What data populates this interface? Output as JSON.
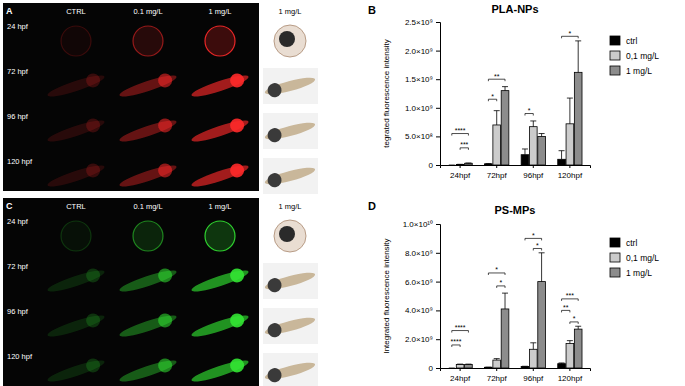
{
  "image_panels": [
    {
      "label": "A",
      "columns": [
        "CTRL",
        "0.1 mg/L",
        "1 mg/L"
      ],
      "rows": [
        "24 hpf",
        "72 hpf",
        "96 hpf",
        "120 hpf"
      ],
      "brightfield_column": "1 mg/L",
      "color": "#ff2a2a"
    },
    {
      "label": "C",
      "columns": [
        "CTRL",
        "0.1 mg/L",
        "1 mg/L"
      ],
      "rows": [
        "24 hpf",
        "72 hpf",
        "96 hpf",
        "120 hpf"
      ],
      "brightfield_column": "1 mg/L",
      "color": "#33e633"
    }
  ],
  "chart_data": [
    {
      "label": "B",
      "type": "bar",
      "title": "PLA-NPs",
      "y_label": "tegrated fluorescence intensity",
      "categories": [
        "24hpf",
        "72hpf",
        "96hpf",
        "120hpf"
      ],
      "series": [
        {
          "name": "ctrl",
          "color": "#000000",
          "values": [
            0,
            20000000,
            180000000,
            100000000
          ],
          "errors": [
            0,
            5000000,
            100000000,
            150000000
          ]
        },
        {
          "name": "0,1 mg/L",
          "color": "#cccccc",
          "values": [
            10000000,
            700000000,
            670000000,
            720000000
          ],
          "errors": [
            2000000,
            250000000,
            100000000,
            450000000
          ]
        },
        {
          "name": "1 mg/L",
          "color": "#8c8c8c",
          "values": [
            30000000,
            1300000000,
            500000000,
            1620000000
          ],
          "errors": [
            5000000,
            70000000,
            50000000,
            550000000
          ]
        }
      ],
      "ylim": [
        0,
        2500000000
      ],
      "yticks": [
        0,
        {
          "value": 500000000,
          "label": "5.0×10⁸"
        },
        {
          "value": 1000000000,
          "label": "1.0×10⁹"
        },
        {
          "value": 1500000000,
          "label": "1.5×10⁹"
        },
        {
          "value": 2000000000,
          "label": "2.0×10⁹"
        },
        {
          "value": 2500000000,
          "label": "2.5×10⁹"
        }
      ],
      "legend": "right",
      "annotations": [
        {
          "text": "****",
          "category": 0,
          "from": 0,
          "to": 2,
          "y": 550000000
        },
        {
          "text": "***",
          "category": 0,
          "from": 1,
          "to": 2,
          "y": 300000000
        },
        {
          "text": "*",
          "category": 1,
          "from": 0,
          "to": 1,
          "y": 1150000000
        },
        {
          "text": "**",
          "category": 1,
          "from": 0,
          "to": 2,
          "y": 1500000000
        },
        {
          "text": "*",
          "category": 2,
          "from": 0,
          "to": 1,
          "y": 900000000
        },
        {
          "text": "*",
          "category": 3,
          "from": 0,
          "to": 2,
          "y": 2250000000
        }
      ]
    },
    {
      "label": "D",
      "type": "bar",
      "title": "PS-MPs",
      "y_label": "Integrated fluorescence intensity",
      "categories": [
        "24hpf",
        "72hpf",
        "96hpf",
        "120hpf"
      ],
      "series": [
        {
          "name": "ctrl",
          "color": "#000000",
          "values": [
            0,
            50000000,
            100000000,
            300000000
          ],
          "errors": [
            0,
            10000000,
            20000000,
            50000000
          ]
        },
        {
          "name": "0,1 mg/L",
          "color": "#cccccc",
          "values": [
            250000000,
            550000000,
            1300000000,
            1700000000
          ],
          "errors": [
            20000000,
            100000000,
            450000000,
            200000000
          ]
        },
        {
          "name": "1 mg/L",
          "color": "#8c8c8c",
          "values": [
            250000000,
            4100000000,
            6000000000,
            2700000000
          ],
          "errors": [
            20000000,
            1100000000,
            2000000000,
            200000000
          ]
        }
      ],
      "ylim": [
        0,
        10000000000
      ],
      "yticks": [
        0,
        {
          "value": 2000000000,
          "label": "2.0×10⁹"
        },
        {
          "value": 4000000000,
          "label": "4.0×10⁹"
        },
        {
          "value": 6000000000,
          "label": "6.0×10⁹"
        },
        {
          "value": 8000000000,
          "label": "8.0×10⁹"
        },
        {
          "value": 10000000000,
          "label": "1.0×10¹⁰"
        }
      ],
      "legend": "right",
      "annotations": [
        {
          "text": "****",
          "category": 0,
          "from": 0,
          "to": 2,
          "y": 2600000000
        },
        {
          "text": "****",
          "category": 0,
          "from": 0,
          "to": 1,
          "y": 1600000000
        },
        {
          "text": "*",
          "category": 1,
          "from": 0,
          "to": 2,
          "y": 6600000000
        },
        {
          "text": "*",
          "category": 1,
          "from": 1,
          "to": 2,
          "y": 5700000000
        },
        {
          "text": "*",
          "category": 2,
          "from": 0,
          "to": 2,
          "y": 9000000000
        },
        {
          "text": "*",
          "category": 2,
          "from": 1,
          "to": 2,
          "y": 8300000000
        },
        {
          "text": "***",
          "category": 3,
          "from": 0,
          "to": 2,
          "y": 4800000000
        },
        {
          "text": "**",
          "category": 3,
          "from": 0,
          "to": 1,
          "y": 4000000000
        },
        {
          "text": "*",
          "category": 3,
          "from": 1,
          "to": 2,
          "y": 3200000000
        }
      ]
    }
  ]
}
